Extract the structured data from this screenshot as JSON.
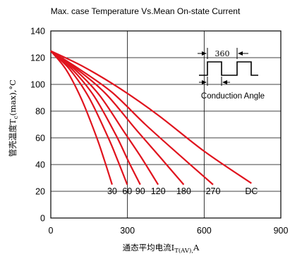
{
  "chart_data": {
    "type": "line",
    "title": "Max. case Temperature Vs.Mean On-state Current",
    "xlabel_main": "通态平均电流I",
    "xlabel_sub": "T(AV),",
    "xlabel_unit": "A",
    "ylabel_main": "管壳温度T",
    "ylabel_sub": "c",
    "ylabel_unit": "(max),°C",
    "xlim": [
      0,
      900
    ],
    "ylim": [
      0,
      140
    ],
    "x_ticks": [
      "0",
      "300",
      "600",
      "900"
    ],
    "y_ticks": [
      "0",
      "20",
      "40",
      "60",
      "80",
      "100",
      "120",
      "140"
    ],
    "grid": true,
    "series_color": "#e0141e",
    "series": [
      {
        "name": "30",
        "points": [
          [
            0,
            125
          ],
          [
            60,
            111
          ],
          [
            120,
            89
          ],
          [
            180,
            60
          ],
          [
            210,
            43
          ],
          [
            240,
            25
          ]
        ]
      },
      {
        "name": "60",
        "points": [
          [
            0,
            125
          ],
          [
            75,
            111
          ],
          [
            150,
            90
          ],
          [
            225,
            60
          ],
          [
            262,
            43
          ],
          [
            299,
            25
          ]
        ]
      },
      {
        "name": "90",
        "points": [
          [
            0,
            125
          ],
          [
            85,
            111
          ],
          [
            170,
            91
          ],
          [
            255,
            62
          ],
          [
            305,
            42
          ],
          [
            350,
            25
          ]
        ]
      },
      {
        "name": "120",
        "points": [
          [
            0,
            125
          ],
          [
            95,
            111
          ],
          [
            190,
            92
          ],
          [
            285,
            65
          ],
          [
            355,
            45
          ],
          [
            420,
            25
          ]
        ]
      },
      {
        "name": "180",
        "points": [
          [
            0,
            125
          ],
          [
            105,
            111
          ],
          [
            215,
            93
          ],
          [
            330,
            67
          ],
          [
            430,
            45
          ],
          [
            520,
            25
          ]
        ]
      },
      {
        "name": "270",
        "points": [
          [
            0,
            125
          ],
          [
            115,
            111
          ],
          [
            240,
            94
          ],
          [
            370,
            70
          ],
          [
            510,
            46
          ],
          [
            635,
            25
          ]
        ]
      },
      {
        "name": "DC",
        "points": [
          [
            0,
            125
          ],
          [
            130,
            113
          ],
          [
            270,
            97
          ],
          [
            420,
            77
          ],
          [
            600,
            50
          ],
          [
            785,
            26
          ]
        ]
      }
    ],
    "curve_label_y": 18
  },
  "inset": {
    "angle_value": "360",
    "label": "Conduction Angle"
  }
}
